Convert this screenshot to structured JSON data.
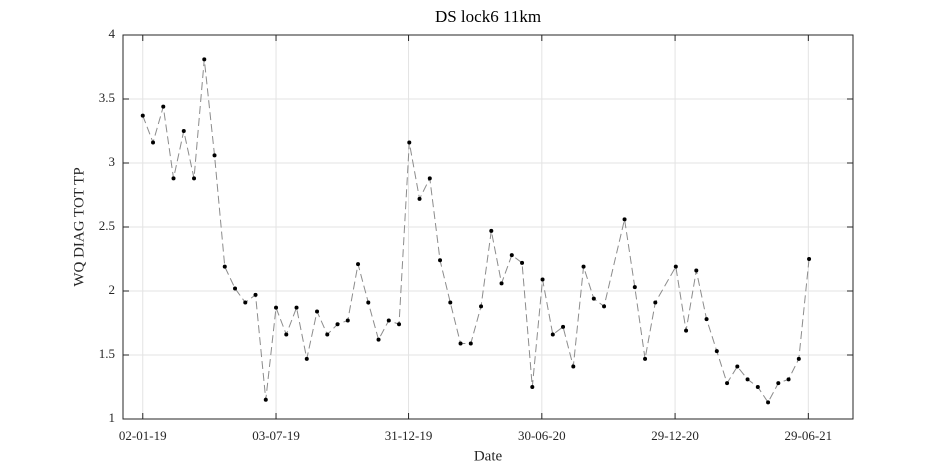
{
  "chart_data": {
    "type": "line",
    "title": "DS lock6 11km",
    "x_label": "Date",
    "y_label": "WQ DIAG TOT TP",
    "x": [
      "02-01-19",
      "16-01-19",
      "30-01-19",
      "13-02-19",
      "27-02-19",
      "13-03-19",
      "27-03-19",
      "10-04-19",
      "24-04-19",
      "08-05-19",
      "22-05-19",
      "05-06-19",
      "19-06-19",
      "03-07-19",
      "17-07-19",
      "31-07-19",
      "14-08-19",
      "28-08-19",
      "11-09-19",
      "25-09-19",
      "09-10-19",
      "23-10-19",
      "06-11-19",
      "20-11-19",
      "04-12-19",
      "18-12-19",
      "01-01-20",
      "15-01-20",
      "29-01-20",
      "12-02-20",
      "26-02-20",
      "11-03-20",
      "25-03-20",
      "08-04-20",
      "22-04-20",
      "06-05-20",
      "20-05-20",
      "03-06-20",
      "17-06-20",
      "01-07-20",
      "15-07-20",
      "29-07-20",
      "12-08-20",
      "26-08-20",
      "09-09-20",
      "23-09-20",
      "21-10-20",
      "04-11-20",
      "18-11-20",
      "02-12-20",
      "30-12-20",
      "13-01-21",
      "27-01-21",
      "10-02-21",
      "24-02-21",
      "10-03-21",
      "24-03-21",
      "07-04-21",
      "21-04-21",
      "05-05-21",
      "19-05-21",
      "02-06-21",
      "16-06-21",
      "30-06-21"
    ],
    "series": [
      {
        "name": "WQ DIAG TOT TP",
        "color": "#8c8c8c",
        "marker_color": "#000000",
        "values": [
          3.37,
          3.16,
          3.44,
          2.88,
          3.25,
          2.88,
          3.81,
          3.06,
          2.19,
          2.02,
          1.91,
          1.97,
          1.15,
          1.87,
          1.66,
          1.87,
          1.47,
          1.84,
          1.66,
          1.74,
          1.77,
          2.21,
          1.91,
          1.62,
          1.77,
          1.74,
          3.16,
          2.72,
          2.88,
          2.24,
          1.91,
          1.59,
          1.59,
          1.88,
          2.47,
          2.06,
          2.28,
          2.22,
          1.25,
          2.09,
          1.66,
          1.72,
          1.41,
          2.19,
          1.94,
          1.88,
          2.56,
          2.03,
          1.47,
          1.91,
          2.19,
          1.69,
          2.16,
          1.78,
          1.53,
          1.28,
          1.41,
          1.31,
          1.25,
          1.13,
          1.28,
          1.31,
          1.47,
          2.25
        ]
      }
    ],
    "xlim": [
      "06-12-18",
      "29-08-21"
    ],
    "xticks": [
      "02-01-19",
      "03-07-19",
      "31-12-19",
      "30-06-20",
      "29-12-20",
      "29-06-21"
    ],
    "ylim": [
      1,
      4
    ],
    "yticks": [
      1,
      1.5,
      2,
      2.5,
      3,
      3.5,
      4
    ],
    "grid": true
  }
}
